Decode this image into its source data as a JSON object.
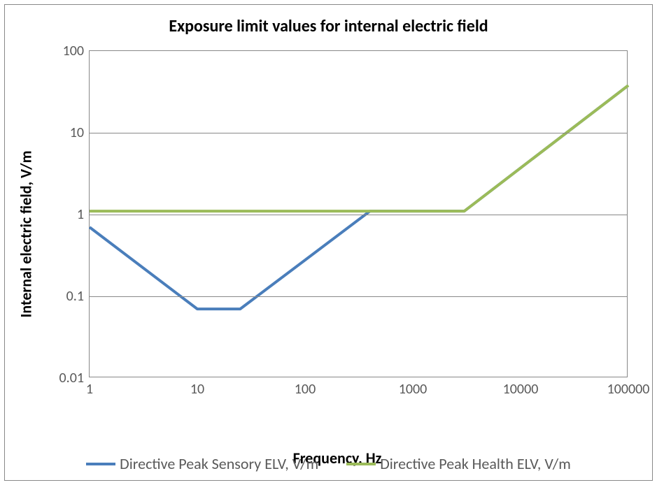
{
  "chart": {
    "title": "Exposure limit values for internal electric field",
    "xlabel": "Frequency, Hz",
    "ylabel": "Internal electric field, V/m",
    "title_fontsize": 24,
    "label_fontsize": 22,
    "tick_fontsize": 20,
    "legend_fontsize": 22,
    "background_color": "#ffffff",
    "border_color": "#888888",
    "grid_color": "#888888",
    "tick_color": "#595959",
    "x_scale": "log",
    "y_scale": "log",
    "xlim": [
      1,
      100000
    ],
    "ylim": [
      0.01,
      100
    ],
    "x_ticks": [
      1,
      10,
      100,
      1000,
      10000,
      100000
    ],
    "x_tick_labels": [
      "1",
      "10",
      "100",
      "1000",
      "10000",
      "100000"
    ],
    "y_ticks": [
      0.01,
      0.1,
      1,
      10,
      100
    ],
    "y_tick_labels": [
      "0.01",
      "0.1",
      "1",
      "10",
      "100"
    ],
    "line_width": 4,
    "series": [
      {
        "name": "Directive Peak Sensory ELV, V/m",
        "color": "#4a7ebb",
        "points": [
          {
            "x": 1,
            "y": 0.7
          },
          {
            "x": 10,
            "y": 0.07
          },
          {
            "x": 25,
            "y": 0.07
          },
          {
            "x": 400,
            "y": 1.1
          },
          {
            "x": 3000,
            "y": 1.1
          },
          {
            "x": 100000,
            "y": 38
          }
        ]
      },
      {
        "name": "Directive Peak Health ELV, V/m",
        "color": "#9bbb59",
        "points": [
          {
            "x": 1,
            "y": 1.1
          },
          {
            "x": 3000,
            "y": 1.1
          },
          {
            "x": 100000,
            "y": 38
          }
        ]
      }
    ]
  }
}
